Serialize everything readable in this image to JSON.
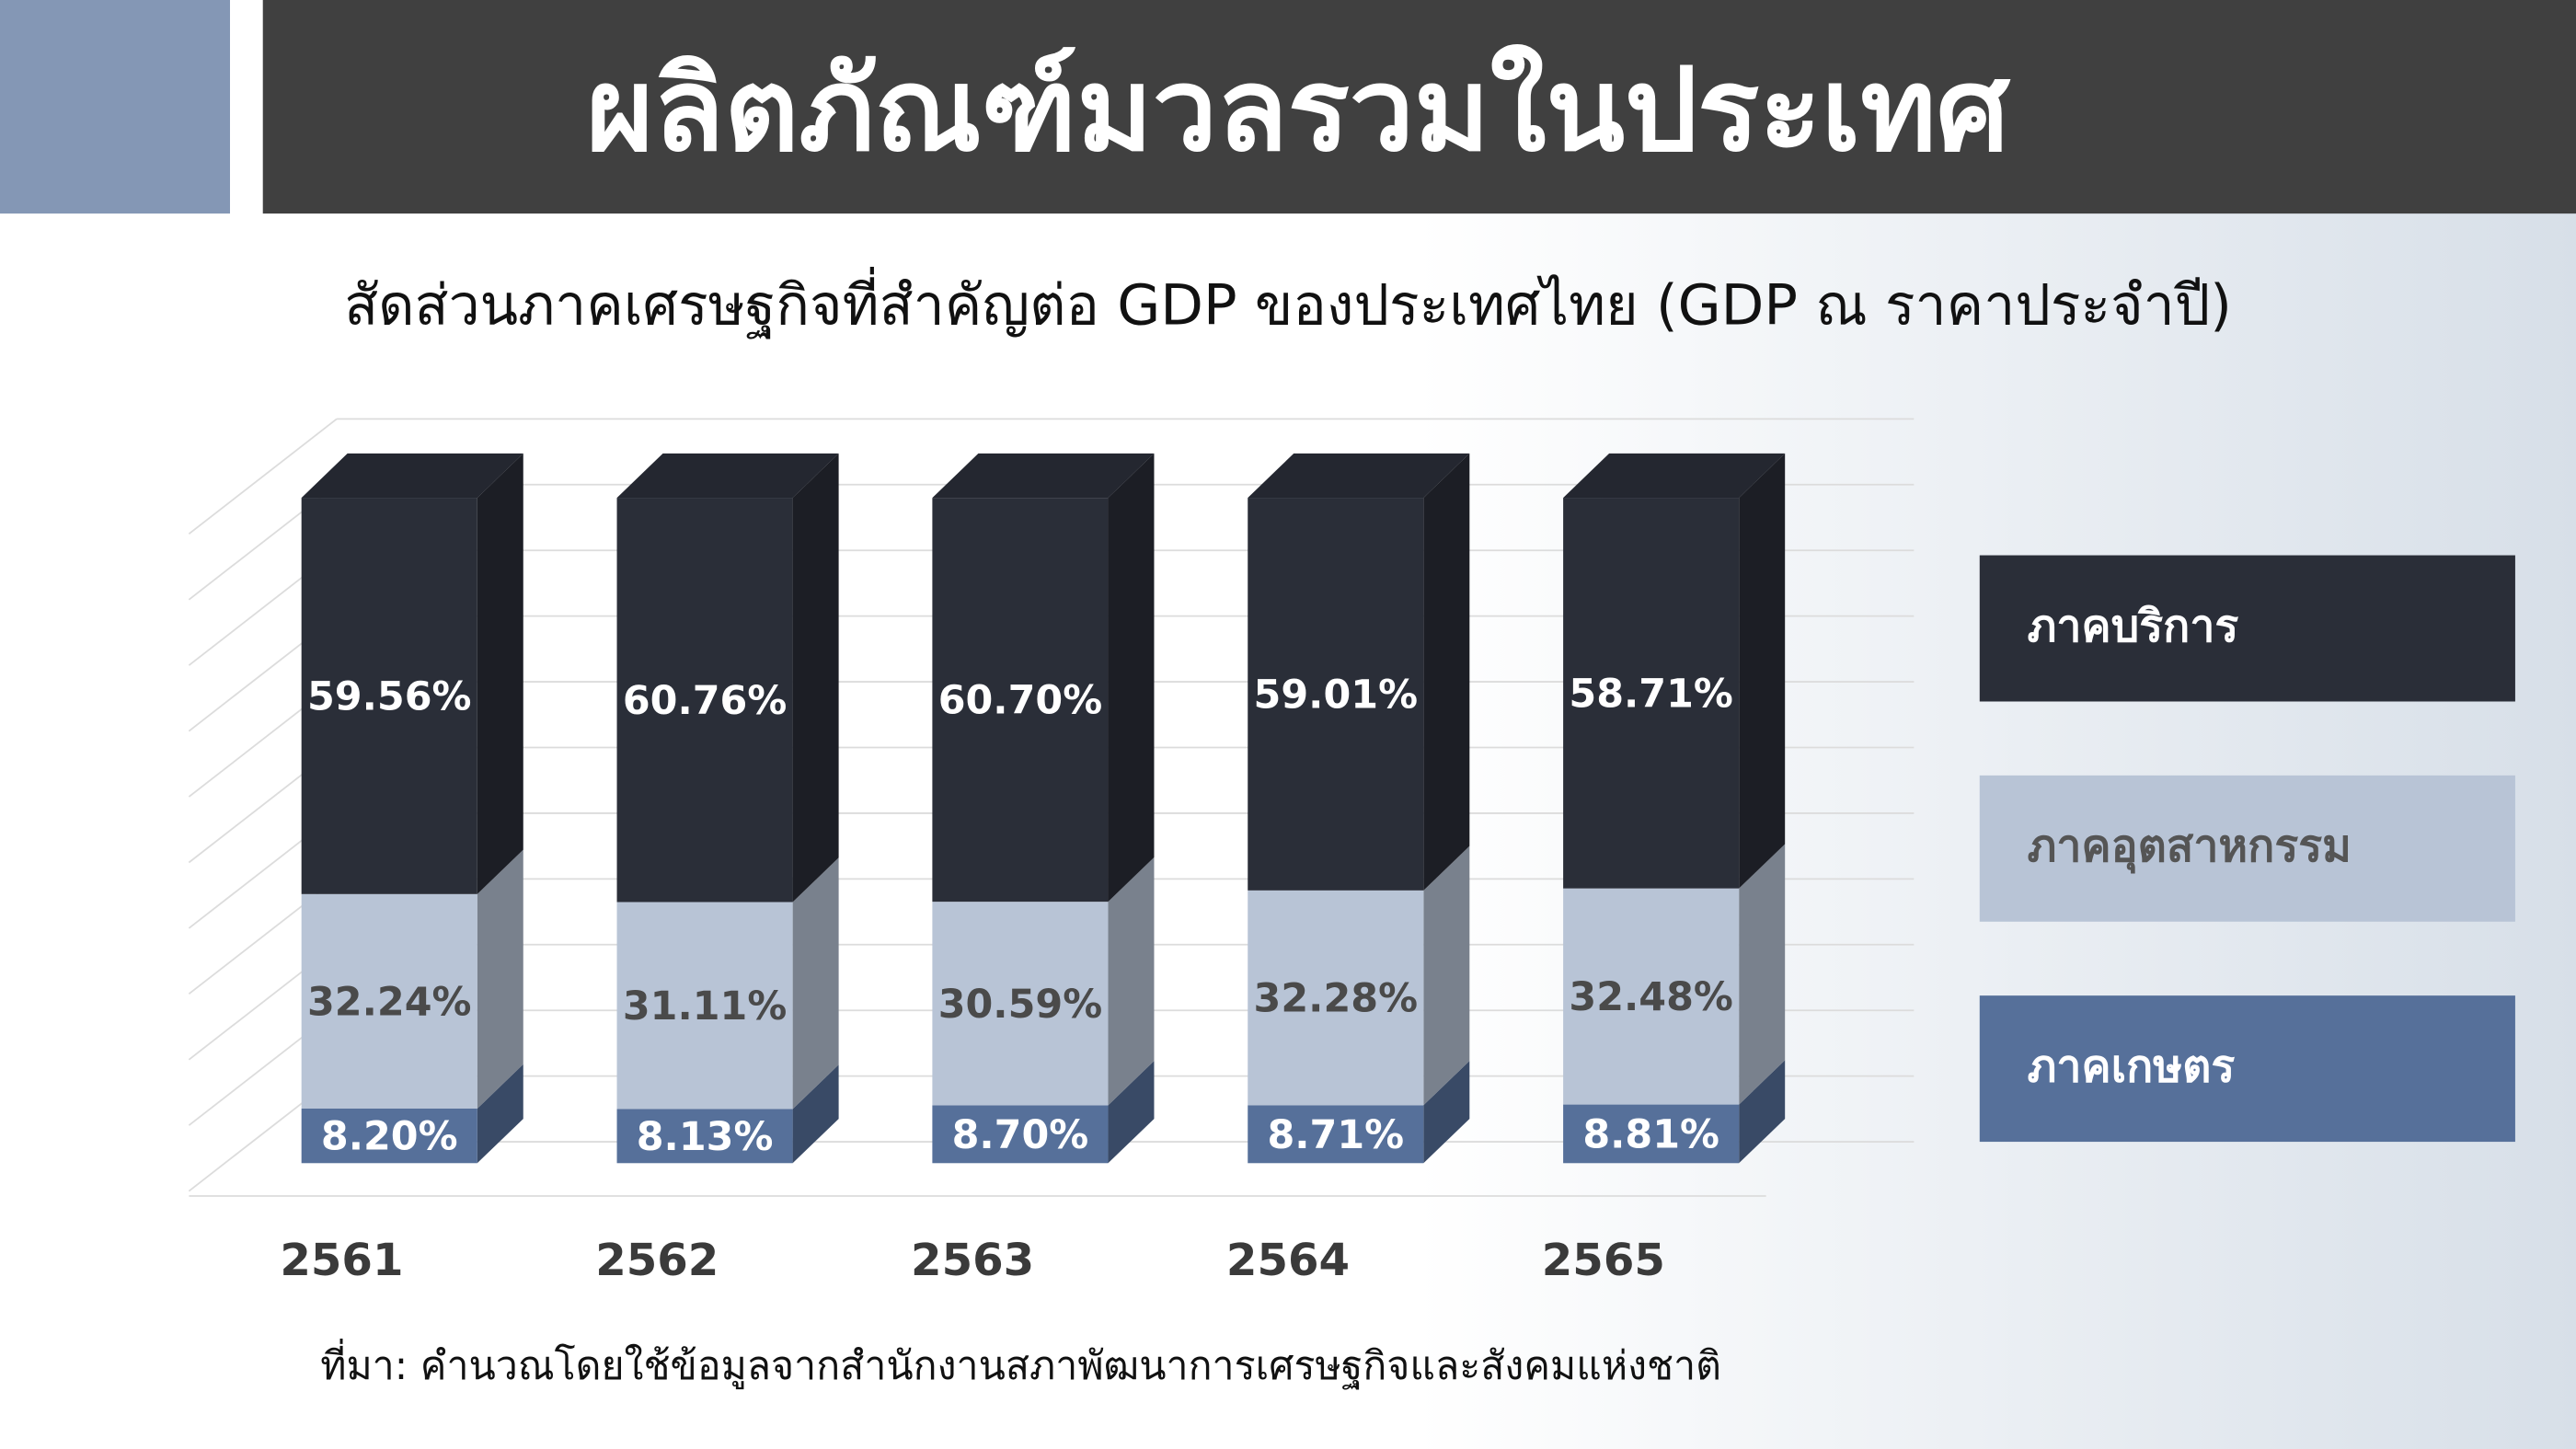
{
  "header": {
    "title": "ผลิตภัณฑ์มวลรวมในประเทศ"
  },
  "chart_data": {
    "type": "bar",
    "stacked": true,
    "title": "สัดส่วนภาคเศรษฐกิจที่สำคัญต่อ GDP ของประเทศไทย (GDP ณ ราคาประจำปี)",
    "categories": [
      "2561",
      "2562",
      "2563",
      "2564",
      "2565"
    ],
    "series": [
      {
        "name": "ภาคเกษตร",
        "color": "#56709a",
        "values": [
          8.2,
          8.13,
          8.7,
          8.71,
          8.81
        ],
        "value_labels": [
          "8.20%",
          "8.13%",
          "8.70%",
          "8.71%",
          "8.81%"
        ]
      },
      {
        "name": "ภาคอุตสาหกรรม",
        "color": "#b8c4d6",
        "values": [
          32.24,
          31.11,
          30.59,
          32.28,
          32.48
        ],
        "value_labels": [
          "32.24%",
          "31.11%",
          "30.59%",
          "32.28%",
          "32.48%"
        ]
      },
      {
        "name": "ภาคบริการ",
        "color": "#2a2e38",
        "values": [
          59.56,
          60.76,
          60.7,
          59.01,
          58.71
        ],
        "value_labels": [
          "59.56%",
          "60.76%",
          "60.70%",
          "59.01%",
          "58.71%"
        ]
      }
    ],
    "ylim": [
      0,
      100
    ],
    "legend": "right",
    "source": "ที่มา: คำนวณโดยใช้ข้อมูลจากสำนักงานสภาพัฒนาการเศรษฐกิจและสังคมแห่งชาติ"
  }
}
